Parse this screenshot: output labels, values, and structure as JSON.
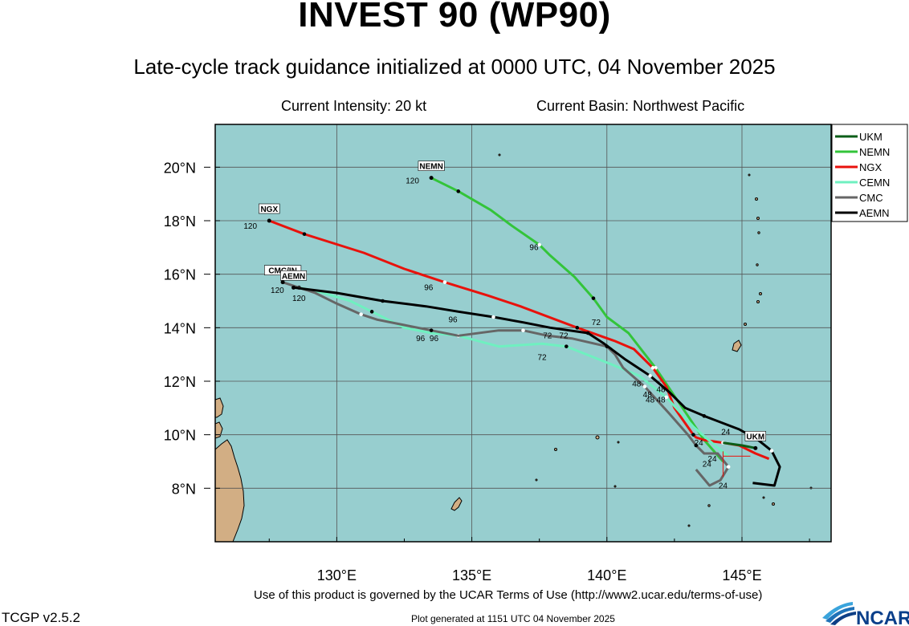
{
  "header": {
    "title": "INVEST 90 (WP90)",
    "subtitle": "Late-cycle track guidance initialized at 0000 UTC, 04 November 2025",
    "intensity": "Current Intensity: 20 kt",
    "basin": "Current Basin: Northwest Pacific"
  },
  "footer": {
    "terms": "Use of this product is governed by the UCAR Terms of Use (http://www2.ucar.edu/terms-of-use)",
    "version": "TCGP v2.5.2",
    "generated": "Plot generated at 1151 UTC   04 November 2025",
    "logo_text": "NCAR"
  },
  "map": {
    "lon_range": [
      125.5,
      148.3
    ],
    "lat_range": [
      6.0,
      21.6
    ],
    "x_ticks": [
      130,
      135,
      140,
      145
    ],
    "x_tick_labels": [
      "130°E",
      "135°E",
      "140°E",
      "145°E"
    ],
    "y_ticks": [
      8,
      10,
      12,
      14,
      16,
      18,
      20
    ],
    "y_tick_labels": [
      "8°N",
      "10°N",
      "12°N",
      "14°N",
      "16°N",
      "18°N",
      "20°N"
    ],
    "ocean_color": "#97cecf",
    "land_color": "#d2ae84",
    "grid": true,
    "legend_placement": "top-right outside"
  },
  "legend": [
    {
      "name": "UKM",
      "color": "#0b5e18"
    },
    {
      "name": "NEMN",
      "color": "#33c43a"
    },
    {
      "name": "NGX",
      "color": "#e8120c"
    },
    {
      "name": "CEMN",
      "color": "#6ff0c0"
    },
    {
      "name": "CMC",
      "color": "#666666"
    },
    {
      "name": "AEMN",
      "color": "#000000"
    }
  ],
  "tracks": [
    {
      "name": "NEMN",
      "color": "#33c43a",
      "tag": "NEMN",
      "points": [
        [
          144.3,
          9.0
        ],
        [
          143.6,
          9.8
        ],
        [
          142.8,
          11.0
        ],
        [
          141.8,
          12.5
        ],
        [
          140.8,
          13.8
        ],
        [
          140.0,
          14.4
        ],
        [
          139.5,
          15.1
        ],
        [
          138.8,
          15.9
        ],
        [
          137.9,
          16.7
        ],
        [
          137.5,
          17.1
        ],
        [
          136.5,
          17.8
        ],
        [
          135.7,
          18.4
        ],
        [
          134.5,
          19.1
        ],
        [
          133.5,
          19.6
        ]
      ],
      "hour_labels": [
        {
          "h": "72",
          "lon": 139.6,
          "lat": 14.1
        },
        {
          "h": "96",
          "lon": 137.3,
          "lat": 16.9
        },
        {
          "h": "120",
          "lon": 132.8,
          "lat": 19.4
        }
      ]
    },
    {
      "name": "NGX",
      "color": "#e8120c",
      "tag": "NGX",
      "points": [
        [
          146.0,
          9.1
        ],
        [
          145.5,
          9.3
        ],
        [
          144.9,
          9.6
        ],
        [
          144.3,
          9.7
        ],
        [
          143.6,
          9.8
        ],
        [
          143.3,
          9.9
        ],
        [
          143.2,
          10.0
        ],
        [
          142.5,
          11.0
        ],
        [
          142.2,
          11.8
        ],
        [
          141.7,
          12.5
        ],
        [
          141.0,
          13.2
        ],
        [
          140.3,
          13.5
        ],
        [
          138.9,
          14.0
        ],
        [
          136.8,
          14.8
        ],
        [
          135.6,
          15.2
        ],
        [
          134.0,
          15.7
        ],
        [
          132.5,
          16.2
        ],
        [
          131.0,
          16.8
        ],
        [
          128.8,
          17.5
        ],
        [
          127.5,
          18.0
        ]
      ],
      "hour_labels": [
        {
          "h": "96",
          "lon": 133.4,
          "lat": 15.4
        },
        {
          "h": "120",
          "lon": 126.8,
          "lat": 17.7
        }
      ]
    },
    {
      "name": "CEMN",
      "color": "#6ff0c0",
      "tag": "",
      "points": [
        [
          144.5,
          9.2
        ],
        [
          144.0,
          9.6
        ],
        [
          143.2,
          10.3
        ],
        [
          142.2,
          11.4
        ],
        [
          141.2,
          12.2
        ],
        [
          140.0,
          12.7
        ],
        [
          138.5,
          13.3
        ],
        [
          137.6,
          13.4
        ],
        [
          136.0,
          13.3
        ],
        [
          134.5,
          13.7
        ],
        [
          133.5,
          13.8
        ],
        [
          132.5,
          14.0
        ],
        [
          131.3,
          14.6
        ],
        [
          130.5,
          15.0
        ],
        [
          129.5,
          15.3
        ],
        [
          128.6,
          15.5
        ]
      ],
      "hour_labels": []
    },
    {
      "name": "CMC",
      "color": "#666666",
      "tag": "CMC/IN",
      "points": [
        [
          143.3,
          8.7
        ],
        [
          143.8,
          8.1
        ],
        [
          144.2,
          8.3
        ],
        [
          144.5,
          8.8
        ],
        [
          144.1,
          9.3
        ],
        [
          143.6,
          9.3
        ],
        [
          143.3,
          9.6
        ],
        [
          143.0,
          10.0
        ],
        [
          142.3,
          10.8
        ],
        [
          141.4,
          11.8
        ],
        [
          140.6,
          12.5
        ],
        [
          140.3,
          13.0
        ],
        [
          140.0,
          13.3
        ],
        [
          138.7,
          13.6
        ],
        [
          137.8,
          13.7
        ],
        [
          136.9,
          13.9
        ],
        [
          136.0,
          13.9
        ],
        [
          134.5,
          13.7
        ],
        [
          133.5,
          13.9
        ],
        [
          132.5,
          14.1
        ],
        [
          131.5,
          14.3
        ],
        [
          130.9,
          14.5
        ],
        [
          130.0,
          14.9
        ],
        [
          129.2,
          15.3
        ],
        [
          128.0,
          15.7
        ]
      ],
      "hour_labels": [
        {
          "h": "72",
          "lon": 138.4,
          "lat": 13.6
        },
        {
          "h": "72",
          "lon": 137.6,
          "lat": 12.8
        },
        {
          "h": "96",
          "lon": 133.1,
          "lat": 13.5
        },
        {
          "h": "96",
          "lon": 133.6,
          "lat": 13.5
        },
        {
          "h": "120",
          "lon": 127.8,
          "lat": 15.3
        }
      ]
    },
    {
      "name": "AEMN",
      "color": "#000000",
      "tag": "AEMN",
      "points": [
        [
          145.4,
          8.2
        ],
        [
          146.2,
          8.1
        ],
        [
          146.4,
          8.8
        ],
        [
          146.1,
          9.4
        ],
        [
          145.6,
          9.8
        ],
        [
          144.9,
          10.2
        ],
        [
          143.6,
          10.7
        ],
        [
          142.9,
          11.0
        ],
        [
          142.3,
          11.6
        ],
        [
          141.6,
          12.2
        ],
        [
          140.7,
          12.8
        ],
        [
          139.9,
          13.4
        ],
        [
          139.3,
          13.8
        ],
        [
          137.9,
          14.0
        ],
        [
          136.9,
          14.2
        ],
        [
          135.8,
          14.4
        ],
        [
          134.5,
          14.6
        ],
        [
          133.3,
          14.8
        ],
        [
          131.7,
          15.0
        ],
        [
          130.0,
          15.3
        ],
        [
          128.4,
          15.5
        ]
      ],
      "hour_labels": [
        {
          "h": "96",
          "lon": 134.3,
          "lat": 14.2
        },
        {
          "h": "72",
          "lon": 137.8,
          "lat": 13.6
        },
        {
          "h": "120",
          "lon": 128.6,
          "lat": 15.0
        }
      ]
    },
    {
      "name": "UKM",
      "color": "#0b5e18",
      "tag": "UKM",
      "points": [
        [
          144.3,
          9.7
        ],
        [
          145.0,
          9.6
        ],
        [
          145.5,
          9.5
        ]
      ],
      "hour_labels": []
    }
  ],
  "cluster_labels": [
    {
      "h": "48",
      "lon": 141.1,
      "lat": 11.8
    },
    {
      "h": "48",
      "lon": 141.5,
      "lat": 11.4
    },
    {
      "h": "48",
      "lon": 141.6,
      "lat": 11.2
    },
    {
      "h": "48",
      "lon": 142.0,
      "lat": 11.2
    },
    {
      "h": "48",
      "lon": 142.0,
      "lat": 11.6
    },
    {
      "h": "24",
      "lon": 144.4,
      "lat": 10.0
    },
    {
      "h": "24",
      "lon": 143.4,
      "lat": 9.6
    },
    {
      "h": "24",
      "lon": 143.9,
      "lat": 9.0
    },
    {
      "h": "24",
      "lon": 143.7,
      "lat": 8.8
    },
    {
      "h": "24",
      "lon": 144.3,
      "lat": 8.0
    }
  ],
  "current_position": {
    "lon": 144.3,
    "lat": 9.2,
    "color": "#e8120c"
  }
}
